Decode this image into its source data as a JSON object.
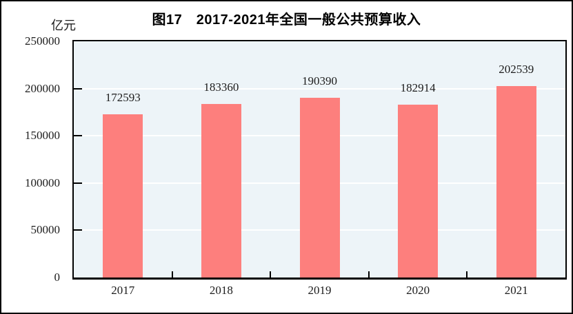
{
  "figure": {
    "title": "图17　2017-2021年全国一般公共预算收入",
    "unit_label": "亿元"
  },
  "chart_data": {
    "type": "bar",
    "title": "图17　2017-2021年全国一般公共预算收入",
    "categories": [
      "2017",
      "2018",
      "2019",
      "2020",
      "2021"
    ],
    "values": [
      172593,
      183360,
      190390,
      182914,
      202539
    ],
    "data_labels": [
      "172593",
      "183360",
      "190390",
      "182914",
      "202539"
    ],
    "xlabel": "",
    "ylabel": "亿元",
    "ylim": [
      0,
      250000
    ],
    "yticks": [
      0,
      50000,
      100000,
      150000,
      200000,
      250000
    ],
    "grid": true,
    "legend": "none",
    "colors": {
      "bar_fill": "#FD7F7D",
      "plot_background": "#EDF4F8",
      "gridline": "#FFFFFF",
      "axis_line": "#000000",
      "text": "#1C1C1C"
    }
  }
}
